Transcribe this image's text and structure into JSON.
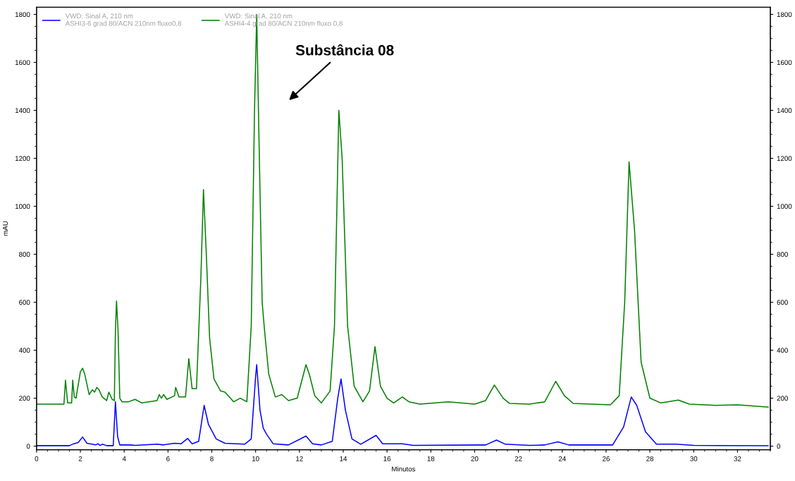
{
  "chart_data": {
    "type": "line",
    "xlabel": "Minutos",
    "ylabel": "mAU",
    "xlim": [
      0,
      33.5
    ],
    "xticks": [
      0,
      2,
      4,
      6,
      8,
      10,
      12,
      14,
      16,
      18,
      20,
      22,
      24,
      26,
      28,
      30,
      32
    ],
    "ylim": [
      -15,
      1830
    ],
    "yticks": [
      0,
      200,
      400,
      600,
      800,
      1000,
      1200,
      1400,
      1600,
      1800
    ],
    "y2lim": [
      -15,
      1830
    ],
    "y2ticks": [
      0,
      200,
      400,
      600,
      800,
      1000,
      1200,
      1400,
      1600,
      1800
    ],
    "grid": false,
    "legend": "top left",
    "marker": "none",
    "line_style": "solid",
    "annotations": [
      "Substância 08"
    ],
    "series": [
      {
        "name": "VWD: Sinal A, 210 nm\nASHI3-6 grad 80/ACN 210nm fluxo0,8",
        "color": "#0000ff",
        "x": [
          0,
          1.5,
          1.7,
          1.9,
          2.1,
          2.3,
          2.7,
          2.8,
          2.9,
          3.0,
          3.2,
          3.5,
          3.6,
          3.7,
          3.8,
          4.3,
          4.5,
          5.5,
          5.8,
          6.3,
          6.6,
          6.9,
          7.1,
          7.4,
          7.55,
          7.65,
          7.85,
          8.2,
          8.6,
          9.5,
          9.8,
          10.0,
          10.05,
          10.2,
          10.35,
          10.5,
          10.8,
          11.5,
          12.3,
          12.6,
          13.0,
          13.5,
          13.75,
          13.9,
          14.1,
          14.4,
          14.8,
          15.5,
          15.8,
          16.7,
          17.2,
          20.5,
          21.0,
          21.4,
          22.5,
          23.2,
          23.8,
          24.3,
          26.3,
          26.8,
          27.15,
          27.4,
          27.8,
          28.3,
          29.2,
          30.0,
          33.4
        ],
        "values": [
          2,
          2,
          10,
          15,
          38,
          12,
          5,
          10,
          3,
          8,
          2,
          2,
          185,
          40,
          5,
          5,
          3,
          8,
          5,
          12,
          10,
          32,
          10,
          20,
          110,
          170,
          90,
          30,
          12,
          8,
          30,
          290,
          340,
          150,
          75,
          50,
          10,
          5,
          42,
          10,
          5,
          20,
          200,
          280,
          150,
          30,
          8,
          45,
          10,
          10,
          3,
          5,
          25,
          8,
          3,
          5,
          18,
          5,
          5,
          80,
          205,
          170,
          60,
          8,
          8,
          3,
          2
        ]
      },
      {
        "name": "VWD: Sinal A, 210 nm\nASHI4-4 grad 80/ACN 210nm fluxo 0,8",
        "color": "#008000",
        "x": [
          0,
          1.25,
          1.32,
          1.42,
          1.6,
          1.65,
          1.72,
          1.8,
          2.0,
          2.1,
          2.2,
          2.4,
          2.55,
          2.65,
          2.75,
          2.85,
          3.0,
          3.2,
          3.3,
          3.45,
          3.55,
          3.6,
          3.65,
          3.72,
          3.8,
          3.9,
          4.2,
          4.5,
          4.8,
          5.5,
          5.6,
          5.7,
          5.8,
          5.95,
          6.3,
          6.35,
          6.5,
          6.8,
          6.95,
          7.1,
          7.3,
          7.5,
          7.62,
          7.75,
          7.9,
          8.1,
          8.4,
          8.6,
          9.0,
          9.3,
          9.6,
          9.8,
          9.95,
          10.05,
          10.15,
          10.3,
          10.4,
          10.6,
          10.9,
          11.2,
          11.5,
          11.9,
          12.3,
          12.45,
          12.7,
          13.0,
          13.4,
          13.6,
          13.8,
          13.95,
          14.2,
          14.5,
          14.9,
          15.2,
          15.45,
          15.7,
          16.0,
          16.3,
          16.7,
          17.0,
          17.5,
          18.8,
          20.0,
          20.5,
          20.9,
          21.3,
          21.6,
          22.5,
          23.2,
          23.7,
          24.1,
          24.5,
          26.2,
          26.6,
          26.85,
          27.05,
          27.3,
          27.6,
          28.0,
          28.5,
          29.3,
          29.8,
          31.0,
          32.0,
          33.4
        ],
        "values": [
          175,
          175,
          275,
          180,
          180,
          275,
          205,
          200,
          310,
          325,
          300,
          215,
          235,
          225,
          245,
          235,
          205,
          190,
          225,
          195,
          190,
          480,
          605,
          480,
          200,
          185,
          185,
          195,
          180,
          190,
          215,
          200,
          215,
          195,
          210,
          245,
          205,
          205,
          365,
          240,
          240,
          700,
          1070,
          800,
          450,
          280,
          230,
          225,
          185,
          200,
          185,
          500,
          1400,
          1800,
          1300,
          600,
          490,
          300,
          205,
          215,
          190,
          200,
          340,
          300,
          210,
          180,
          230,
          500,
          1400,
          1200,
          500,
          250,
          185,
          230,
          415,
          250,
          200,
          180,
          205,
          185,
          175,
          185,
          175,
          190,
          255,
          200,
          178,
          175,
          185,
          270,
          210,
          178,
          172,
          210,
          600,
          1185,
          900,
          350,
          200,
          180,
          192,
          175,
          170,
          172,
          163
        ]
      }
    ]
  }
}
